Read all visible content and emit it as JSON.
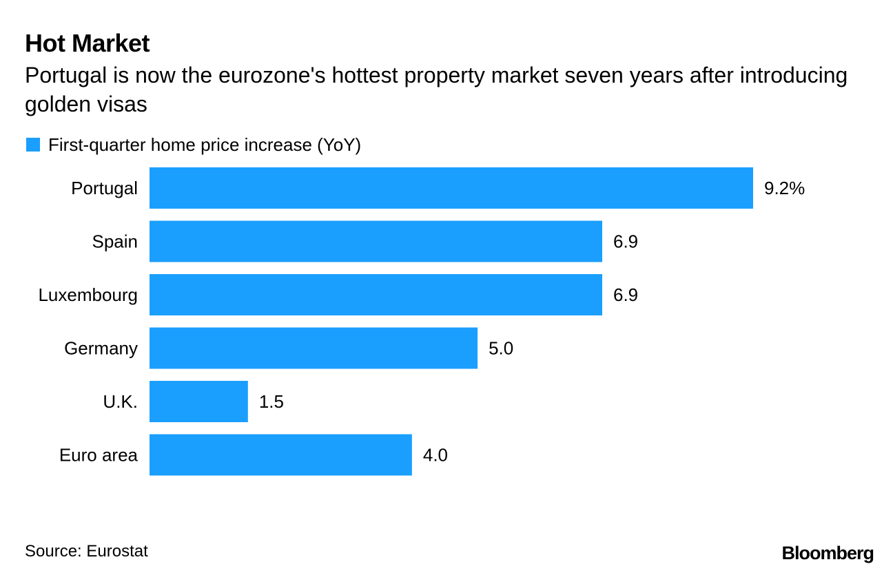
{
  "header": {
    "title": "Hot Market",
    "subtitle": "Portugal is now the eurozone's hottest property market seven years after introducing golden visas"
  },
  "legend": {
    "label": "First-quarter home price increase (YoY)"
  },
  "colors": {
    "bar": "#1a9fff",
    "text": "#000000"
  },
  "chart_data": {
    "type": "bar",
    "orientation": "horizontal",
    "categories": [
      "Portugal",
      "Spain",
      "Luxembourg",
      "Germany",
      "U.K.",
      "Euro area"
    ],
    "series": [
      {
        "name": "First-quarter home price increase (YoY)",
        "values": [
          9.2,
          6.9,
          6.9,
          5.0,
          1.5,
          4.0
        ]
      }
    ],
    "value_labels": [
      "9.2%",
      "6.9",
      "6.9",
      "5.0",
      "1.5",
      "4.0"
    ],
    "title": "Hot Market",
    "subtitle": "Portugal is now the eurozone's hottest property market seven years after introducing golden visas",
    "xlabel": "",
    "ylabel": "",
    "xlim": [
      0,
      9.2
    ],
    "grid": false,
    "legend_position": "top-left"
  },
  "footer": {
    "source": "Source: Eurostat",
    "brand": "Bloomberg"
  }
}
